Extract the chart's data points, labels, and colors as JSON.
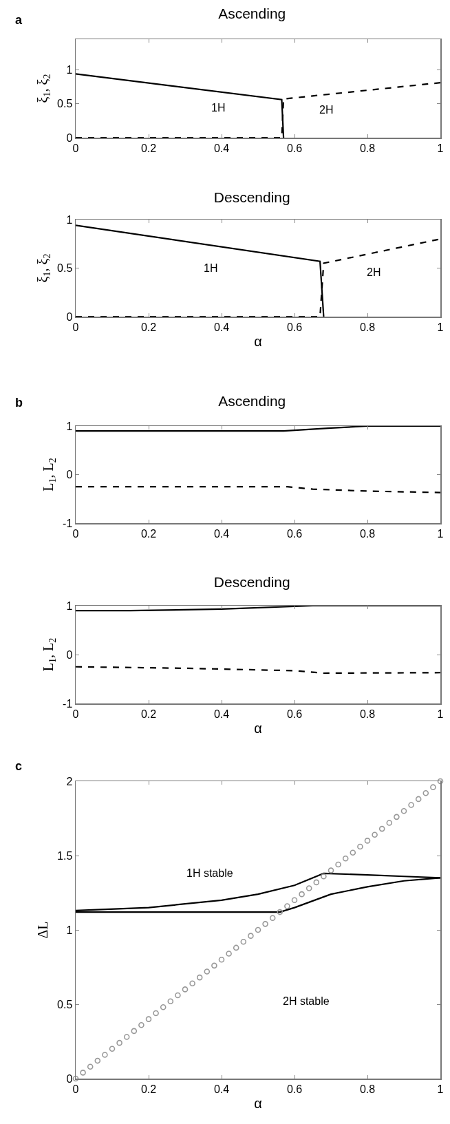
{
  "chart_data": [
    {
      "type": "line",
      "title": "Ascending",
      "ylabel": "ξ$_{1}$, ξ$_{2}$",
      "xlim": [
        0,
        1
      ],
      "ylim": [
        0,
        1.45
      ],
      "xticks": [
        0,
        0.2,
        0.4,
        0.6,
        0.8,
        1
      ],
      "yticks": [
        0,
        0.5,
        1
      ],
      "grid": false,
      "annotations": [
        "a",
        "1H",
        "2H"
      ],
      "series": [
        {
          "color": "#000000",
          "line_style": "solid",
          "x": [
            0,
            0.565,
            0.57
          ],
          "values": [
            0.94,
            0.56,
            0
          ]
        },
        {
          "color": "#000000",
          "line_style": "dashed",
          "x": [
            0,
            0.565,
            0.57,
            1
          ],
          "values": [
            0,
            0,
            0.57,
            0.81
          ]
        }
      ]
    },
    {
      "type": "line",
      "title": "Descending",
      "xlabel": "α",
      "ylabel": "ξ$_{1}$, ξ$_{2}$",
      "xlim": [
        0,
        1
      ],
      "ylim": [
        0,
        1
      ],
      "xticks": [
        0,
        0.2,
        0.4,
        0.6,
        0.8,
        1
      ],
      "yticks": [
        0,
        0.5,
        1
      ],
      "grid": false,
      "annotations": [
        "1H",
        "2H"
      ],
      "series": [
        {
          "color": "#000000",
          "line_style": "solid",
          "x": [
            0,
            0.67,
            0.68
          ],
          "values": [
            0.94,
            0.57,
            0
          ]
        },
        {
          "color": "#000000",
          "line_style": "dashed",
          "x": [
            0,
            0.67,
            0.68,
            1
          ],
          "values": [
            0,
            0,
            0.55,
            0.8
          ]
        }
      ]
    },
    {
      "type": "line",
      "title": "Ascending",
      "ylabel": "L$_{1}$, L$_{2}$",
      "xlim": [
        0,
        1
      ],
      "ylim": [
        -1,
        1
      ],
      "xticks": [
        0,
        0.2,
        0.4,
        0.6,
        0.8,
        1
      ],
      "yticks": [
        -1,
        0,
        1
      ],
      "grid": false,
      "annotations": [
        "b"
      ],
      "series": [
        {
          "color": "#000000",
          "line_style": "solid",
          "x": [
            0,
            0.57,
            0.7,
            0.8,
            1
          ],
          "values": [
            0.9,
            0.9,
            0.96,
            1,
            1
          ]
        },
        {
          "color": "#000000",
          "line_style": "dashed",
          "x": [
            0,
            0.58,
            0.65,
            0.8,
            1
          ],
          "values": [
            -0.25,
            -0.25,
            -0.3,
            -0.34,
            -0.37
          ]
        }
      ]
    },
    {
      "type": "line",
      "title": "Descending",
      "xlabel": "α",
      "ylabel": "L$_{1}$, L$_{2}$",
      "xlim": [
        0,
        1
      ],
      "ylim": [
        -1,
        1
      ],
      "xticks": [
        0,
        0.2,
        0.4,
        0.6,
        0.8,
        1
      ],
      "yticks": [
        -1,
        0,
        1
      ],
      "grid": false,
      "series": [
        {
          "color": "#000000",
          "line_style": "solid",
          "x": [
            0,
            0.15,
            0.4,
            0.65,
            1
          ],
          "values": [
            0.9,
            0.9,
            0.93,
            1,
            1
          ]
        },
        {
          "color": "#000000",
          "line_style": "dashed",
          "x": [
            0,
            0.3,
            0.6,
            0.68,
            1
          ],
          "values": [
            -0.25,
            -0.28,
            -0.33,
            -0.38,
            -0.37
          ]
        }
      ]
    },
    {
      "type": "line",
      "xlabel": "α",
      "ylabel": "ΔL",
      "xlim": [
        0,
        1
      ],
      "ylim": [
        0,
        2
      ],
      "xticks": [
        0,
        0.2,
        0.4,
        0.6,
        0.8,
        1
      ],
      "yticks": [
        0,
        0.5,
        1,
        1.5,
        2
      ],
      "grid": false,
      "annotations": [
        "c",
        "1H stable",
        "2H stable"
      ],
      "series": [
        {
          "color": "#000000",
          "line_style": "solid",
          "x": [
            0,
            0.2,
            0.4,
            0.5,
            0.6,
            0.68,
            0.8,
            0.9,
            1
          ],
          "values": [
            1.13,
            1.15,
            1.2,
            1.24,
            1.3,
            1.38,
            1.37,
            1.36,
            1.35
          ]
        },
        {
          "color": "#000000",
          "line_style": "solid",
          "x": [
            0,
            0.56,
            0.6,
            0.7,
            0.8,
            0.9,
            1
          ],
          "values": [
            1.12,
            1.12,
            1.15,
            1.24,
            1.29,
            1.33,
            1.35
          ]
        },
        {
          "type": "scatter",
          "marker": "circle",
          "color": "#999999",
          "x": [
            0,
            0.02,
            0.04,
            0.06,
            0.08,
            0.1,
            0.12,
            0.14,
            0.16,
            0.18,
            0.2,
            0.22,
            0.24,
            0.26,
            0.28,
            0.3,
            0.32,
            0.34,
            0.36,
            0.38,
            0.4,
            0.42,
            0.44,
            0.46,
            0.48,
            0.5,
            0.52,
            0.54,
            0.56,
            0.58,
            0.6,
            0.62,
            0.64,
            0.66,
            0.68,
            0.7,
            0.72,
            0.74,
            0.76,
            0.78,
            0.8,
            0.82,
            0.84,
            0.86,
            0.88,
            0.9,
            0.92,
            0.94,
            0.96,
            0.98,
            1
          ],
          "values": [
            0,
            0.04,
            0.08,
            0.12,
            0.16,
            0.2,
            0.24,
            0.28,
            0.32,
            0.36,
            0.4,
            0.44,
            0.48,
            0.52,
            0.56,
            0.6,
            0.64,
            0.68,
            0.72,
            0.76,
            0.8,
            0.84,
            0.88,
            0.92,
            0.96,
            1,
            1.04,
            1.08,
            1.12,
            1.16,
            1.2,
            1.24,
            1.28,
            1.32,
            1.36,
            1.4,
            1.44,
            1.48,
            1.52,
            1.56,
            1.6,
            1.64,
            1.68,
            1.72,
            1.76,
            1.8,
            1.84,
            1.88,
            1.92,
            1.96,
            2
          ]
        }
      ]
    }
  ]
}
